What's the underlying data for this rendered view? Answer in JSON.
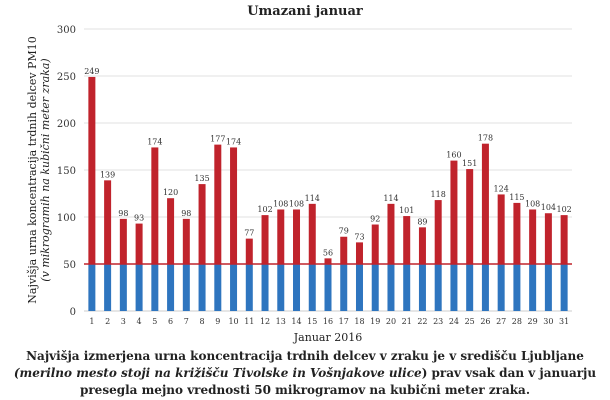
{
  "chart_data": {
    "type": "bar",
    "title": "Umazani januar",
    "xlabel": "Januar 2016",
    "ylabel": "Najvišja urna koncentracija trdnih delcev PM10",
    "ylabel_sub": "(v mikrogramih na kubični meter zraka)",
    "ylim": [
      0,
      300
    ],
    "yticks": [
      0,
      50,
      100,
      150,
      200,
      250,
      300
    ],
    "threshold": 50,
    "categories": [
      "1",
      "2",
      "3",
      "4",
      "5",
      "6",
      "7",
      "8",
      "9",
      "10",
      "11",
      "12",
      "13",
      "14",
      "15",
      "16",
      "17",
      "18",
      "19",
      "20",
      "21",
      "22",
      "23",
      "24",
      "25",
      "26",
      "27",
      "28",
      "29",
      "30",
      "31"
    ],
    "values": [
      249,
      139,
      98,
      93,
      174,
      120,
      98,
      135,
      177,
      174,
      77,
      102,
      108,
      108,
      114,
      56,
      79,
      73,
      92,
      114,
      101,
      89,
      118,
      160,
      151,
      178,
      124,
      115,
      108,
      104,
      102
    ],
    "colors": {
      "below": "#2e75bf",
      "above": "#c0232c",
      "threshold_line": "#c0232c",
      "grid": "#e2e2e2"
    }
  },
  "caption": {
    "line1": "Najvišja izmerjena urna koncentracija trdnih delcev v zraku je v središču Ljubljane",
    "line2_italic": "(merilno mesto stoji na križišču Tivolske in Vošnjakove ulice",
    "line2_rest": ") prav vsak dan v januarju",
    "line3": "presegla mejno vrednosti 50 mikrogramov na kubični meter zraka."
  }
}
